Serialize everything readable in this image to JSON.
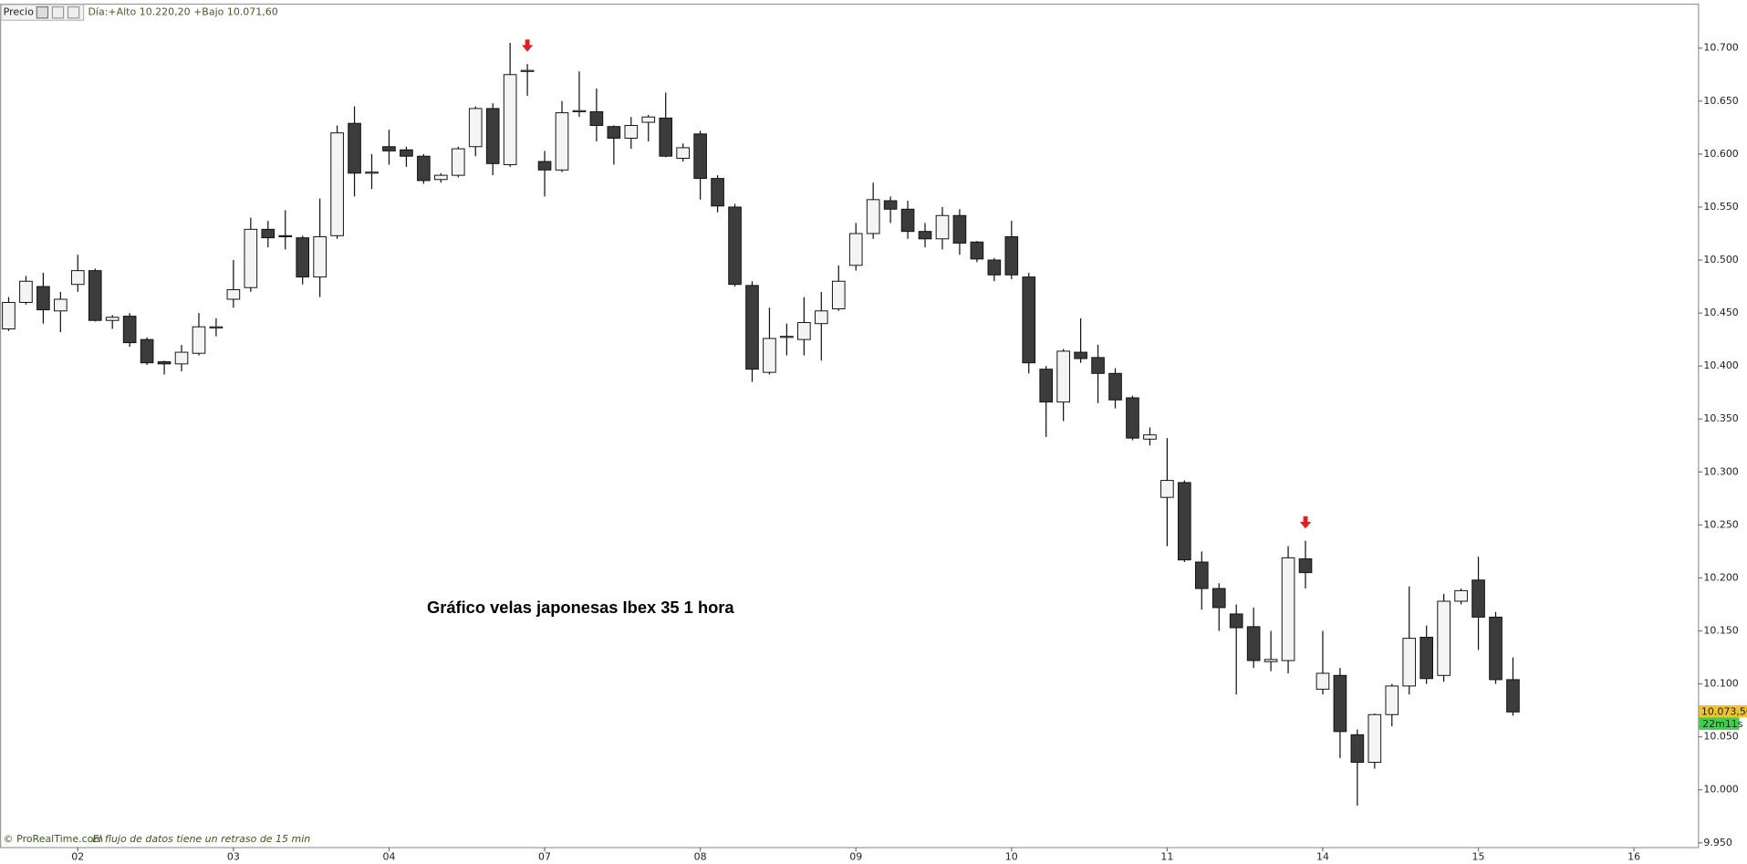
{
  "header": {
    "label": "Precio",
    "info": "Día:+Alto 10.220,20 +Bajo 10.071,60"
  },
  "footer": {
    "source": "© ProRealTime.com",
    "note": "El flujo de datos tiene un retraso de 15 min"
  },
  "chart_data": {
    "type": "candlestick",
    "annotation": "Gráfico velas japonesas Ibex 35 1 hora",
    "up_color": "#f4f4f4",
    "down_color": "#3c3c3c",
    "edge_color": "#111111",
    "arrow_color": "#e02020",
    "signal_arrows": [
      30,
      75
    ],
    "open": [
      10.435,
      10.46,
      10.475,
      10.452,
      10.477,
      10.49,
      10.443,
      10.447,
      10.425,
      10.404,
      10.402,
      10.412,
      10.436,
      10.463,
      10.474,
      10.529,
      10.523,
      10.521,
      10.484,
      10.523,
      10.629,
      10.583,
      10.607,
      10.604,
      10.598,
      10.576,
      10.58,
      10.607,
      10.643,
      10.59,
      10.679,
      10.593,
      10.585,
      10.64,
      10.64,
      10.626,
      10.615,
      10.63,
      10.634,
      10.596,
      10.619,
      10.577,
      10.55,
      10.476,
      10.394,
      10.428,
      10.425,
      10.44,
      10.454,
      10.495,
      10.525,
      10.556,
      10.548,
      10.527,
      10.52,
      10.542,
      10.517,
      10.5,
      10.522,
      10.484,
      10.397,
      10.366,
      10.413,
      10.408,
      10.393,
      10.37,
      10.331,
      10.276,
      10.29,
      10.215,
      10.19,
      10.166,
      10.154,
      10.121,
      10.122,
      10.218,
      10.095,
      10.108,
      10.052,
      10.026,
      10.071,
      10.098,
      10.144,
      10.108,
      10.178,
      10.198,
      10.163,
      10.104
    ],
    "high": [
      10.465,
      10.485,
      10.488,
      10.47,
      10.505,
      10.492,
      10.448,
      10.45,
      10.427,
      10.405,
      10.42,
      10.45,
      10.445,
      10.5,
      10.54,
      10.537,
      10.547,
      10.523,
      10.558,
      10.627,
      10.645,
      10.6,
      10.623,
      10.607,
      10.6,
      10.582,
      10.607,
      10.645,
      10.648,
      10.705,
      10.685,
      10.603,
      10.65,
      10.678,
      10.662,
      10.627,
      10.635,
      10.637,
      10.658,
      10.61,
      10.622,
      10.58,
      10.553,
      10.48,
      10.455,
      10.44,
      10.465,
      10.47,
      10.495,
      10.535,
      10.573,
      10.56,
      10.556,
      10.535,
      10.55,
      10.548,
      10.518,
      10.502,
      10.537,
      10.488,
      10.4,
      10.416,
      10.445,
      10.42,
      10.398,
      10.372,
      10.342,
      10.332,
      10.292,
      10.225,
      10.195,
      10.175,
      10.172,
      10.15,
      10.23,
      10.235,
      10.15,
      10.115,
      10.057,
      10.072,
      10.1,
      10.192,
      10.155,
      10.185,
      10.19,
      10.22,
      10.168,
      10.125
    ],
    "low": [
      10.433,
      10.458,
      10.44,
      10.432,
      10.47,
      10.442,
      10.435,
      10.418,
      10.401,
      10.392,
      10.395,
      10.41,
      10.428,
      10.455,
      10.47,
      10.512,
      10.51,
      10.477,
      10.465,
      10.52,
      10.56,
      10.567,
      10.59,
      10.588,
      10.572,
      10.573,
      10.578,
      10.598,
      10.58,
      10.588,
      10.655,
      10.56,
      10.583,
      10.635,
      10.612,
      10.59,
      10.605,
      10.612,
      10.597,
      10.593,
      10.557,
      10.545,
      10.475,
      10.385,
      10.392,
      10.41,
      10.41,
      10.405,
      10.452,
      10.49,
      10.52,
      10.535,
      10.52,
      10.512,
      10.51,
      10.505,
      10.498,
      10.48,
      10.482,
      10.393,
      10.333,
      10.348,
      10.403,
      10.365,
      10.36,
      10.33,
      10.325,
      10.23,
      10.215,
      10.17,
      10.15,
      10.09,
      10.115,
      10.112,
      10.11,
      10.19,
      10.09,
      10.03,
      9.985,
      10.02,
      10.06,
      10.09,
      10.1,
      10.102,
      10.175,
      10.132,
      10.1,
      10.07
    ],
    "close": [
      10.46,
      10.48,
      10.453,
      10.463,
      10.49,
      10.443,
      10.446,
      10.422,
      10.403,
      10.402,
      10.413,
      10.437,
      10.437,
      10.472,
      10.529,
      10.521,
      10.522,
      10.484,
      10.522,
      10.62,
      10.582,
      10.583,
      10.603,
      10.598,
      10.575,
      10.58,
      10.605,
      10.643,
      10.591,
      10.675,
      10.679,
      10.585,
      10.639,
      10.641,
      10.627,
      10.615,
      10.627,
      10.635,
      10.598,
      10.606,
      10.577,
      10.551,
      10.477,
      10.397,
      10.426,
      10.428,
      10.441,
      10.452,
      10.48,
      10.525,
      10.557,
      10.548,
      10.527,
      10.52,
      10.542,
      10.516,
      10.501,
      10.486,
      10.486,
      10.403,
      10.366,
      10.414,
      10.407,
      10.393,
      10.368,
      10.332,
      10.335,
      10.292,
      10.217,
      10.19,
      10.172,
      10.153,
      10.122,
      10.123,
      10.219,
      10.205,
      10.11,
      10.055,
      10.026,
      10.071,
      10.098,
      10.143,
      10.105,
      10.178,
      10.188,
      10.163,
      10.104,
      10.0735
    ],
    "last_price": {
      "value": 10.0735,
      "label": "10.073,50"
    },
    "countdown": "22m11s",
    "xlim": [
      -0.5,
      97.7
    ],
    "xticks": [
      {
        "value": 4,
        "label": "02"
      },
      {
        "value": 13,
        "label": "03"
      },
      {
        "value": 22,
        "label": "04"
      },
      {
        "value": 31,
        "label": "07"
      },
      {
        "value": 40,
        "label": "08"
      },
      {
        "value": 49,
        "label": "09"
      },
      {
        "value": 58,
        "label": "10"
      },
      {
        "value": 67,
        "label": "11"
      },
      {
        "value": 76,
        "label": "14"
      },
      {
        "value": 85,
        "label": "15"
      },
      {
        "value": 94,
        "label": "16"
      }
    ],
    "ylim": [
      9.946,
      10.741
    ],
    "yticks": [
      {
        "value": 9.95,
        "label": "9.950"
      },
      {
        "value": 10.0,
        "label": "10.000"
      },
      {
        "value": 10.05,
        "label": "10.050"
      },
      {
        "value": 10.1,
        "label": "10.100"
      },
      {
        "value": 10.15,
        "label": "10.150"
      },
      {
        "value": 10.2,
        "label": "10.200"
      },
      {
        "value": 10.25,
        "label": "10.250"
      },
      {
        "value": 10.3,
        "label": "10.300"
      },
      {
        "value": 10.35,
        "label": "10.350"
      },
      {
        "value": 10.4,
        "label": "10.400"
      },
      {
        "value": 10.45,
        "label": "10.450"
      },
      {
        "value": 10.5,
        "label": "10.500"
      },
      {
        "value": 10.55,
        "label": "10.550"
      },
      {
        "value": 10.6,
        "label": "10.600"
      },
      {
        "value": 10.65,
        "label": "10.650"
      },
      {
        "value": 10.7,
        "label": "10.700"
      }
    ]
  }
}
